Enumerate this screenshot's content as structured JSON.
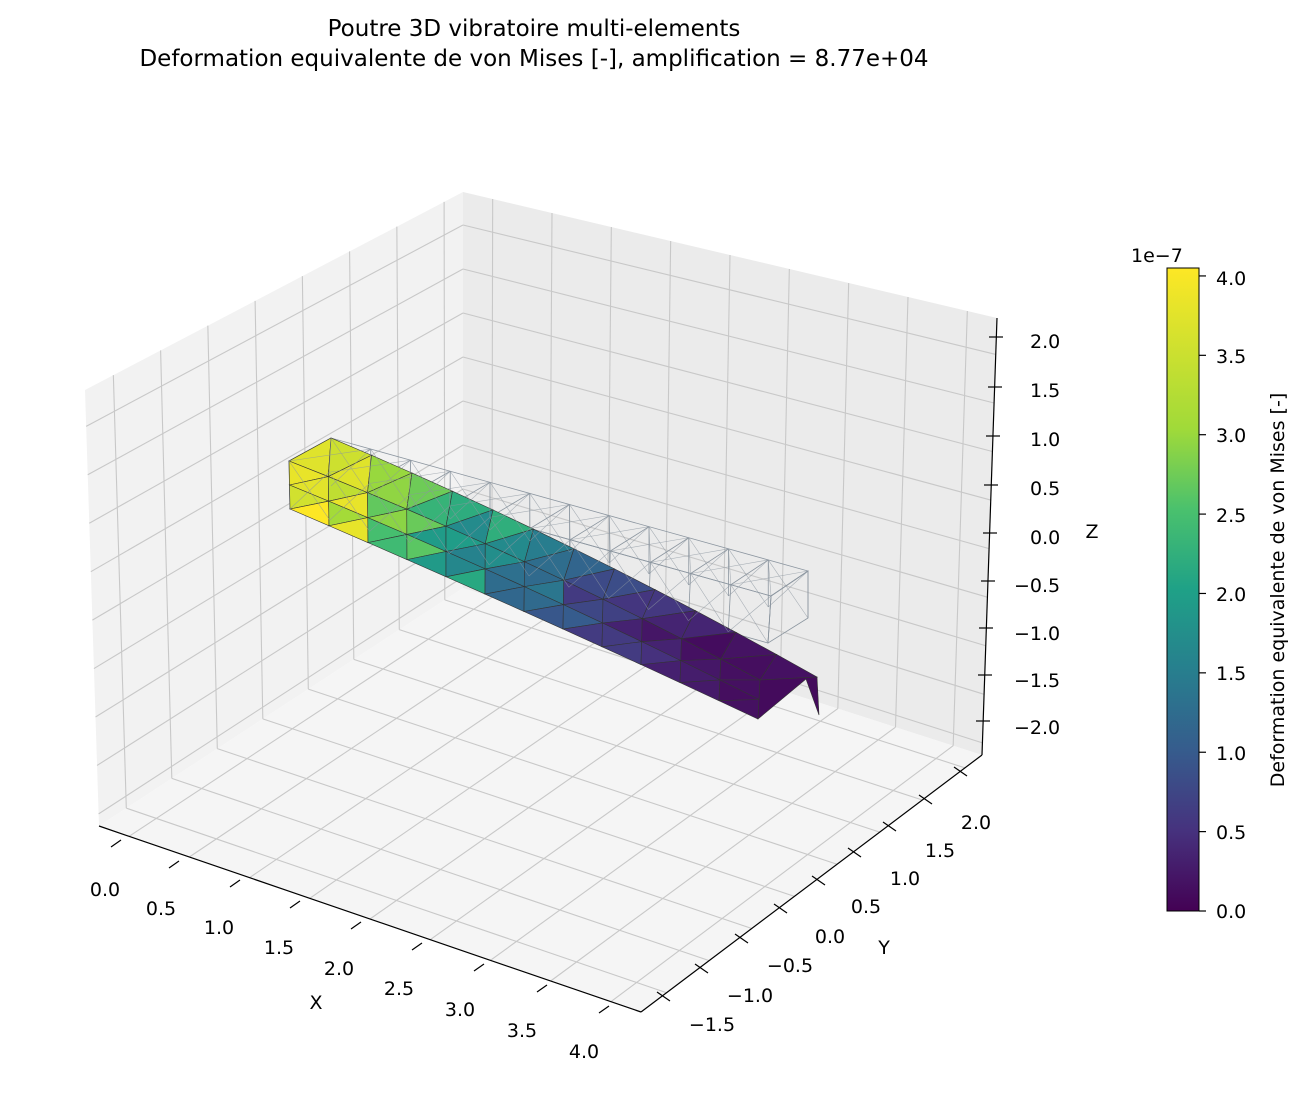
{
  "title_line1": "Poutre 3D vibratoire multi-elements",
  "title_line2": "Deformation equivalente de von Mises [-], amplification = 8.77e+04",
  "chart_data": {
    "type": "3d-surface-mesh",
    "axes": {
      "x": {
        "label": "X",
        "ticks": [
          "0.0",
          "0.5",
          "1.0",
          "1.5",
          "2.0",
          "2.5",
          "3.0",
          "3.5",
          "4.0"
        ],
        "range": [
          -0.2,
          4.2
        ]
      },
      "y": {
        "label": "Y",
        "ticks": [
          "−1.5",
          "−1.0",
          "−0.5",
          "0.0",
          "0.5",
          "1.0",
          "1.5",
          "2.0"
        ],
        "range": [
          -1.8,
          2.3
        ]
      },
      "z": {
        "label": "Z",
        "ticks": [
          "−2.0",
          "−1.5",
          "−1.0",
          "−0.5",
          "0.0",
          "0.5",
          "1.0",
          "1.5",
          "2.0"
        ],
        "range": [
          -2.3,
          2.1
        ]
      },
      "grid": true
    },
    "colorbar": {
      "label": "Deformation equivalente de von Mises [-]",
      "offset": "1e−7",
      "ticks": [
        "0.0",
        "0.5",
        "1.0",
        "1.5",
        "2.0",
        "2.5",
        "3.0",
        "3.5",
        "4.0"
      ],
      "range": [
        0.0,
        4.05
      ],
      "colormap": "viridis"
    },
    "beam": {
      "length": 4.0,
      "width": 0.5,
      "height": 0.5,
      "max_tip_deflection_z": -1.5,
      "strain_at_clamp": 4.0,
      "strain_at_tip": 0.1
    },
    "undeformed_mesh_color": "#8c96a0"
  }
}
